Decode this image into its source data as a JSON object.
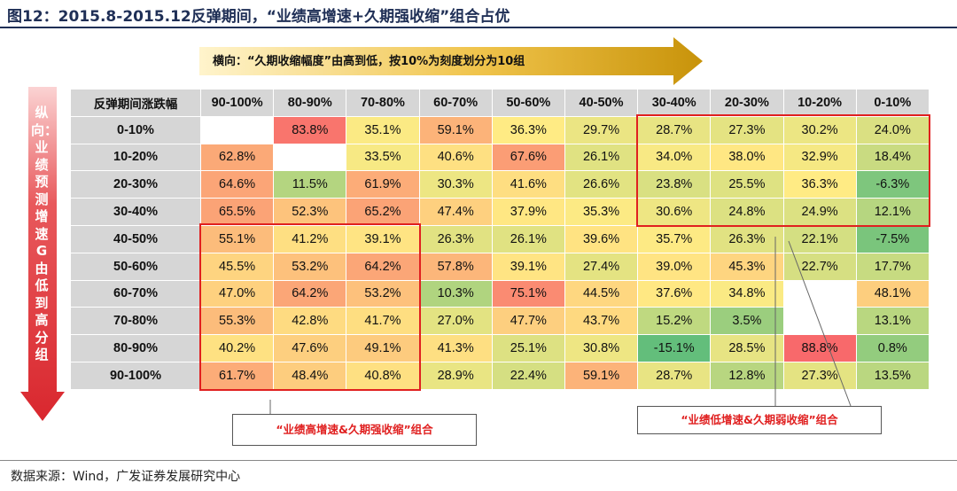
{
  "title": "图12：2015.8-2015.12反弹期间，“业绩高增速+久期强收缩”组合占优",
  "h_axis_note": "横向：“久期收缩幅度”由高到低，按10%为刻度划分为10组",
  "v_axis_note": "纵向：业绩预测增速G由低到高分组",
  "corner_label": "反弹期间涨跌幅",
  "callout_left": "“业绩高增速&久期强收缩”组合",
  "callout_right": "“业绩低增速&久期弱收缩”组合",
  "source": "数据来源：Wind，广发证券发展研究中心",
  "colors": {
    "title": "#1f2f56",
    "arrow_gold": "#c8930a",
    "arrow_red": "#d9272e",
    "highlight_red": "#e02020",
    "header_gray": "#d6d6d6",
    "scale_low": "#63be7b",
    "scale_mid": "#ffeb84",
    "scale_high": "#f8696b"
  },
  "chart_data": {
    "type": "heatmap",
    "columns": [
      "90-100%",
      "80-90%",
      "70-80%",
      "60-70%",
      "50-60%",
      "40-50%",
      "30-40%",
      "20-30%",
      "10-20%",
      "0-10%"
    ],
    "rows": [
      "0-10%",
      "10-20%",
      "20-30%",
      "30-40%",
      "40-50%",
      "50-60%",
      "60-70%",
      "70-80%",
      "80-90%",
      "90-100%"
    ],
    "values": [
      [
        null,
        83.8,
        35.1,
        59.1,
        36.3,
        29.7,
        28.7,
        27.3,
        30.2,
        24.0
      ],
      [
        62.8,
        null,
        33.5,
        40.6,
        67.6,
        26.1,
        34.0,
        38.0,
        32.9,
        18.4
      ],
      [
        64.6,
        11.5,
        61.9,
        30.3,
        41.6,
        26.6,
        23.8,
        25.5,
        36.3,
        -6.3
      ],
      [
        65.5,
        52.3,
        65.2,
        47.4,
        37.9,
        35.3,
        30.6,
        24.8,
        24.9,
        12.1
      ],
      [
        55.1,
        41.2,
        39.1,
        26.3,
        26.1,
        39.6,
        35.7,
        26.3,
        22.1,
        -7.5
      ],
      [
        45.5,
        53.2,
        64.2,
        57.8,
        39.1,
        27.4,
        39.0,
        45.3,
        22.7,
        17.7
      ],
      [
        47.0,
        64.2,
        53.2,
        10.3,
        75.1,
        44.5,
        37.6,
        34.8,
        null,
        48.1
      ],
      [
        55.3,
        42.8,
        41.7,
        27.0,
        47.7,
        43.7,
        15.2,
        3.5,
        null,
        13.1
      ],
      [
        40.2,
        47.6,
        49.1,
        41.3,
        25.1,
        30.8,
        -15.1,
        28.5,
        88.8,
        0.8
      ],
      [
        61.7,
        48.4,
        40.8,
        28.9,
        22.4,
        59.1,
        28.7,
        12.8,
        27.3,
        13.5
      ]
    ],
    "value_suffix": "%",
    "highlight_regions": [
      {
        "label_ref": "callout_left",
        "rows": [
          4,
          9
        ],
        "cols": [
          0,
          2
        ]
      },
      {
        "label_ref": "callout_right",
        "rows": [
          0,
          3
        ],
        "cols": [
          6,
          9
        ]
      }
    ]
  }
}
